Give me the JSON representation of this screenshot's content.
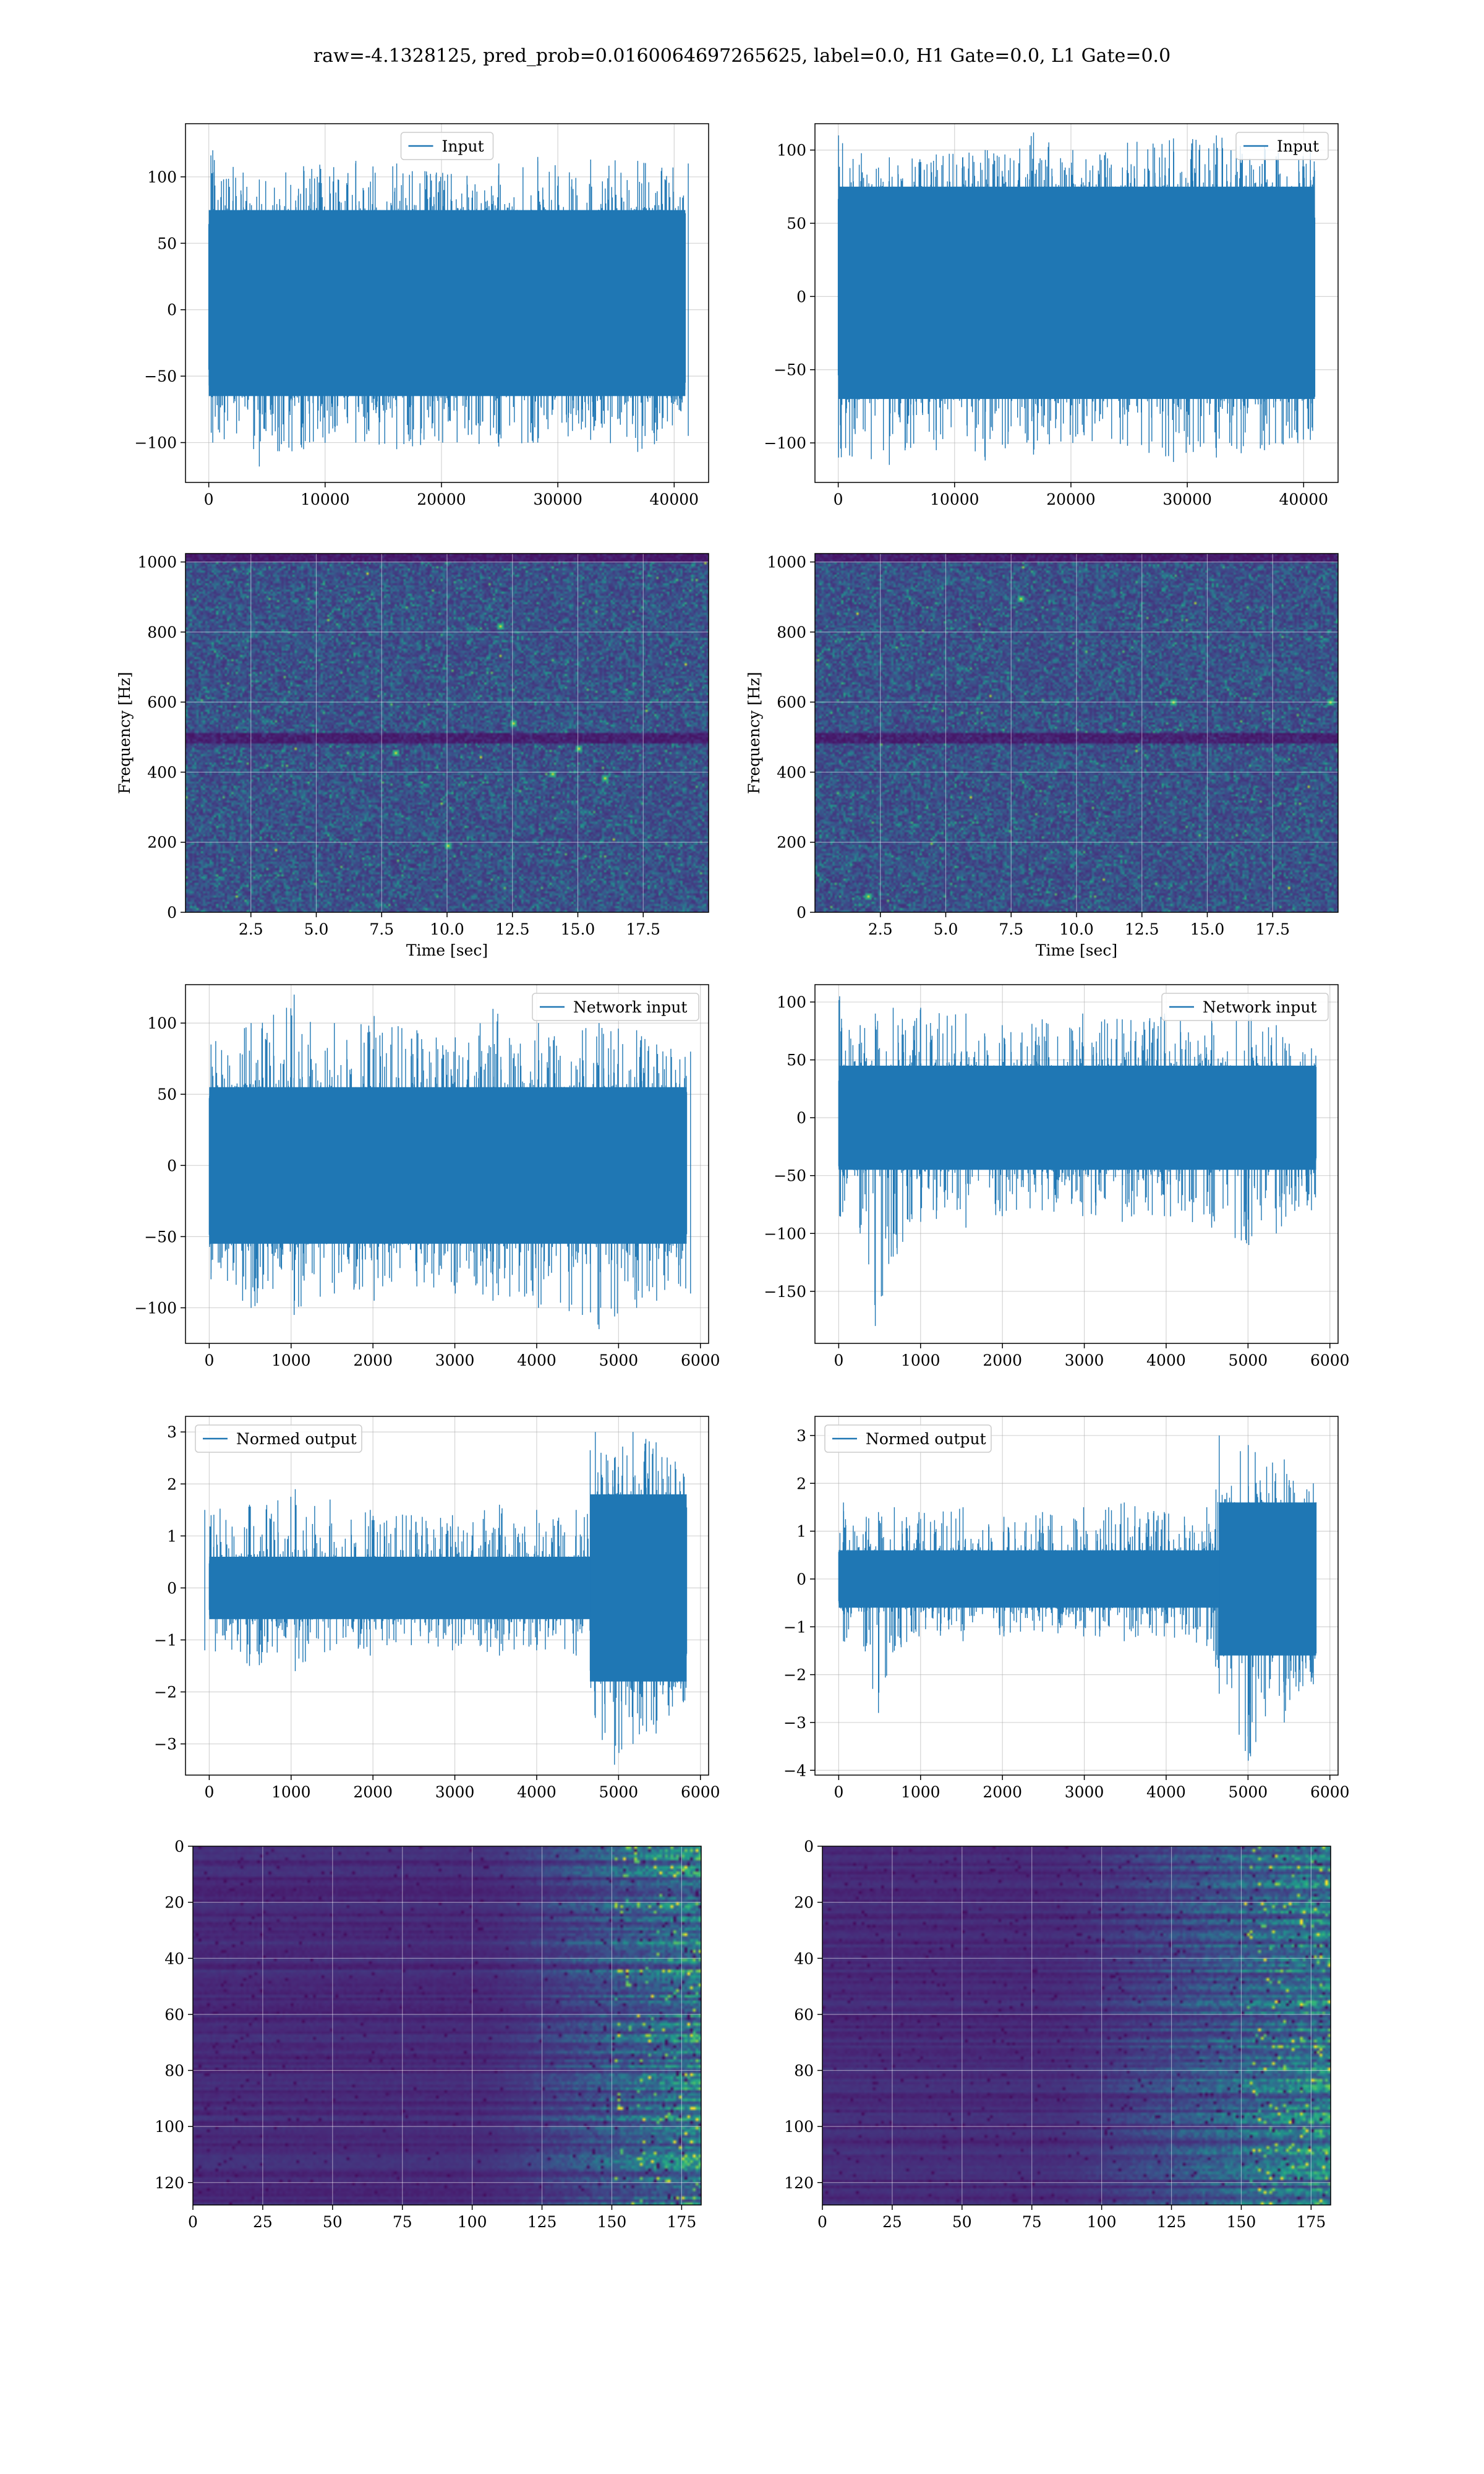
{
  "figure": {
    "suptitle": "raw=-4.1328125, pred_prob=0.0160064697265625, label=0.0, H1 Gate=0.0, L1 Gate=0.0"
  },
  "colors": {
    "series": "#1f77b4",
    "grid": "#b0b0b0",
    "colormap": "viridis",
    "background": "#ffffff"
  },
  "chart_data": [
    {
      "id": "input-h1",
      "type": "line",
      "legend": "Input",
      "legend_loc": "upper center",
      "grid": true,
      "xlim": [
        -2000,
        42960
      ],
      "ylim": [
        -130,
        140
      ],
      "xticks": [
        0,
        10000,
        20000,
        30000,
        40000
      ],
      "yticks": [
        -100,
        -50,
        0,
        50,
        100
      ],
      "n_points": 40960,
      "envelope": [
        [
          0,
          -100,
          120
        ],
        [
          4096,
          -118,
          98
        ],
        [
          8192,
          -105,
          108
        ],
        [
          12288,
          -100,
          112
        ],
        [
          16384,
          -105,
          110
        ],
        [
          20480,
          -100,
          103
        ],
        [
          24576,
          -103,
          110
        ],
        [
          28672,
          -100,
          115
        ],
        [
          32768,
          -98,
          113
        ],
        [
          36864,
          -107,
          112
        ],
        [
          40960,
          -95,
          110
        ]
      ],
      "body_range": [
        -65,
        75
      ],
      "xlabel": "",
      "ylabel": ""
    },
    {
      "id": "input-l1",
      "type": "line",
      "legend": "Input",
      "legend_loc": "upper right",
      "grid": true,
      "xlim": [
        -2000,
        42960
      ],
      "ylim": [
        -127,
        118
      ],
      "xticks": [
        0,
        10000,
        20000,
        30000,
        40000
      ],
      "yticks": [
        -100,
        -50,
        0,
        50,
        100
      ],
      "n_points": 40960,
      "envelope": [
        [
          0,
          -110,
          110
        ],
        [
          4096,
          -115,
          95
        ],
        [
          8192,
          -105,
          97
        ],
        [
          12288,
          -112,
          100
        ],
        [
          16384,
          -108,
          112
        ],
        [
          20480,
          -100,
          100
        ],
        [
          24576,
          -102,
          105
        ],
        [
          28672,
          -113,
          108
        ],
        [
          32768,
          -110,
          110
        ],
        [
          36864,
          -105,
          103
        ],
        [
          40960,
          -98,
          100
        ]
      ],
      "body_range": [
        -70,
        75
      ],
      "xlabel": "",
      "ylabel": ""
    },
    {
      "id": "spectrogram-h1",
      "type": "heatmap",
      "colormap": "viridis",
      "grid": true,
      "xlim": [
        0,
        20
      ],
      "ylim": [
        0,
        1024
      ],
      "xticks": [
        2.5,
        5.0,
        7.5,
        10.0,
        12.5,
        15.0,
        17.5
      ],
      "yticks": [
        0,
        200,
        400,
        600,
        800,
        1000
      ],
      "xlabel": "Time [sec]",
      "ylabel": "Frequency [Hz]",
      "dark_bands_hz": [
        500
      ],
      "bright_spots": [
        [
          12.0,
          820
        ],
        [
          10.0,
          190
        ],
        [
          15.0,
          470
        ],
        [
          14.0,
          400
        ],
        [
          12.5,
          540
        ],
        [
          8.0,
          460
        ],
        [
          16.0,
          385
        ]
      ]
    },
    {
      "id": "spectrogram-l1",
      "type": "heatmap",
      "colormap": "viridis",
      "grid": true,
      "xlim": [
        0,
        20
      ],
      "ylim": [
        0,
        1024
      ],
      "xticks": [
        2.5,
        5.0,
        7.5,
        10.0,
        12.5,
        15.0,
        17.5
      ],
      "yticks": [
        0,
        200,
        400,
        600,
        800,
        1000
      ],
      "xlabel": "Time [sec]",
      "ylabel": "Frequency [Hz]",
      "dark_bands_hz": [
        500
      ],
      "bright_spots": [
        [
          7.8,
          900
        ],
        [
          19.7,
          600
        ],
        [
          2.0,
          50
        ],
        [
          13.7,
          600
        ]
      ]
    },
    {
      "id": "network-input-h1",
      "type": "line",
      "legend": "Network input",
      "legend_loc": "upper right",
      "grid": true,
      "xlim": [
        -290,
        6100
      ],
      "ylim": [
        -125,
        127
      ],
      "xticks": [
        0,
        1000,
        2000,
        3000,
        4000,
        5000,
        6000
      ],
      "yticks": [
        -100,
        -50,
        0,
        50,
        100
      ],
      "n_points": 5832,
      "envelope": [
        [
          0,
          -80,
          85
        ],
        [
          500,
          -100,
          100
        ],
        [
          1000,
          -105,
          120
        ],
        [
          1500,
          -90,
          100
        ],
        [
          2000,
          -95,
          105
        ],
        [
          2500,
          -85,
          95
        ],
        [
          3000,
          -90,
          90
        ],
        [
          3500,
          -95,
          110
        ],
        [
          4000,
          -100,
          100
        ],
        [
          4500,
          -105,
          95
        ],
        [
          4800,
          -115,
          100
        ],
        [
          5200,
          -100,
          95
        ],
        [
          5500,
          -95,
          85
        ],
        [
          5832,
          -90,
          80
        ]
      ],
      "body_range": [
        -55,
        55
      ],
      "xlabel": "",
      "ylabel": ""
    },
    {
      "id": "network-input-l1",
      "type": "line",
      "legend": "Network input",
      "legend_loc": "upper right",
      "grid": true,
      "xlim": [
        -290,
        6100
      ],
      "ylim": [
        -195,
        115
      ],
      "xticks": [
        0,
        1000,
        2000,
        3000,
        4000,
        5000,
        6000
      ],
      "yticks": [
        -150,
        -100,
        -50,
        0,
        50,
        100
      ],
      "n_points": 5832,
      "envelope": [
        [
          0,
          -85,
          105
        ],
        [
          300,
          -100,
          80
        ],
        [
          450,
          -180,
          90
        ],
        [
          700,
          -120,
          95
        ],
        [
          1000,
          -90,
          95
        ],
        [
          1500,
          -95,
          90
        ],
        [
          2000,
          -85,
          80
        ],
        [
          2500,
          -80,
          85
        ],
        [
          3000,
          -85,
          90
        ],
        [
          3500,
          -90,
          85
        ],
        [
          4000,
          -85,
          90
        ],
        [
          4500,
          -95,
          95
        ],
        [
          5000,
          -110,
          90
        ],
        [
          5400,
          -100,
          80
        ],
        [
          5832,
          -80,
          60
        ]
      ],
      "body_range": [
        -45,
        45
      ],
      "xlabel": "",
      "ylabel": ""
    },
    {
      "id": "normed-output-h1",
      "type": "line",
      "legend": "Normed output",
      "legend_loc": "upper left",
      "grid": true,
      "xlim": [
        -290,
        6100
      ],
      "ylim": [
        -3.6,
        3.3
      ],
      "xticks": [
        0,
        1000,
        2000,
        3000,
        4000,
        5000,
        6000
      ],
      "yticks": [
        -3,
        -2,
        -1,
        0,
        1,
        2,
        3
      ],
      "n_points": 5832,
      "envelope": [
        [
          0,
          -1.2,
          1.5
        ],
        [
          500,
          -1.5,
          1.6
        ],
        [
          1000,
          -1.6,
          1.9
        ],
        [
          1500,
          -1.2,
          1.7
        ],
        [
          2000,
          -1.3,
          1.5
        ],
        [
          2500,
          -1.1,
          1.4
        ],
        [
          3000,
          -1.2,
          1.4
        ],
        [
          3500,
          -1.3,
          1.6
        ],
        [
          4000,
          -1.2,
          1.5
        ],
        [
          4500,
          -1.3,
          1.5
        ],
        [
          4700,
          -2.5,
          3.0
        ],
        [
          4900,
          -3.4,
          2.5
        ],
        [
          5200,
          -3.0,
          3.0
        ],
        [
          5500,
          -2.8,
          2.8
        ],
        [
          5832,
          -2.2,
          2.2
        ]
      ],
      "body_range": [
        -0.6,
        0.6
      ],
      "burst_range": [
        4650,
        5832
      ],
      "burst_body": [
        -1.8,
        1.8
      ],
      "xlabel": "",
      "ylabel": ""
    },
    {
      "id": "normed-output-l1",
      "type": "line",
      "legend": "Normed output",
      "legend_loc": "upper left",
      "grid": true,
      "xlim": [
        -290,
        6100
      ],
      "ylim": [
        -4.1,
        3.4
      ],
      "xticks": [
        0,
        1000,
        2000,
        3000,
        4000,
        5000,
        6000
      ],
      "yticks": [
        -4,
        -3,
        -2,
        -1,
        0,
        1,
        2,
        3
      ],
      "n_points": 5832,
      "envelope": [
        [
          0,
          -1.3,
          1.6
        ],
        [
          300,
          -1.4,
          1.3
        ],
        [
          450,
          -2.8,
          1.4
        ],
        [
          700,
          -1.5,
          1.5
        ],
        [
          1000,
          -1.2,
          1.4
        ],
        [
          1500,
          -1.3,
          1.5
        ],
        [
          2000,
          -1.2,
          1.3
        ],
        [
          2500,
          -1.1,
          1.4
        ],
        [
          3000,
          -1.2,
          1.5
        ],
        [
          3500,
          -1.3,
          1.6
        ],
        [
          4000,
          -1.2,
          1.4
        ],
        [
          4500,
          -1.4,
          1.5
        ],
        [
          4700,
          -2.4,
          3.0
        ],
        [
          5000,
          -3.8,
          2.8
        ],
        [
          5400,
          -3.0,
          2.5
        ],
        [
          5832,
          -2.2,
          2.0
        ]
      ],
      "body_range": [
        -0.6,
        0.6
      ],
      "burst_range": [
        4650,
        5832
      ],
      "burst_body": [
        -1.6,
        1.6
      ],
      "xlabel": "",
      "ylabel": ""
    },
    {
      "id": "feature-map-h1",
      "type": "heatmap",
      "colormap": "viridis",
      "grid": true,
      "xlim": [
        0,
        182
      ],
      "ylim": [
        128,
        0
      ],
      "xticks": [
        0,
        25,
        50,
        75,
        100,
        125,
        150,
        175
      ],
      "yticks": [
        0,
        20,
        40,
        60,
        80,
        100,
        120
      ],
      "activation_onset_x": 100,
      "xlabel": "",
      "ylabel": ""
    },
    {
      "id": "feature-map-l1",
      "type": "heatmap",
      "colormap": "viridis",
      "grid": true,
      "xlim": [
        0,
        182
      ],
      "ylim": [
        128,
        0
      ],
      "xticks": [
        0,
        25,
        50,
        75,
        100,
        125,
        150,
        175
      ],
      "yticks": [
        0,
        20,
        40,
        60,
        80,
        100,
        120
      ],
      "activation_onset_x": 80,
      "xlabel": "",
      "ylabel": ""
    }
  ]
}
